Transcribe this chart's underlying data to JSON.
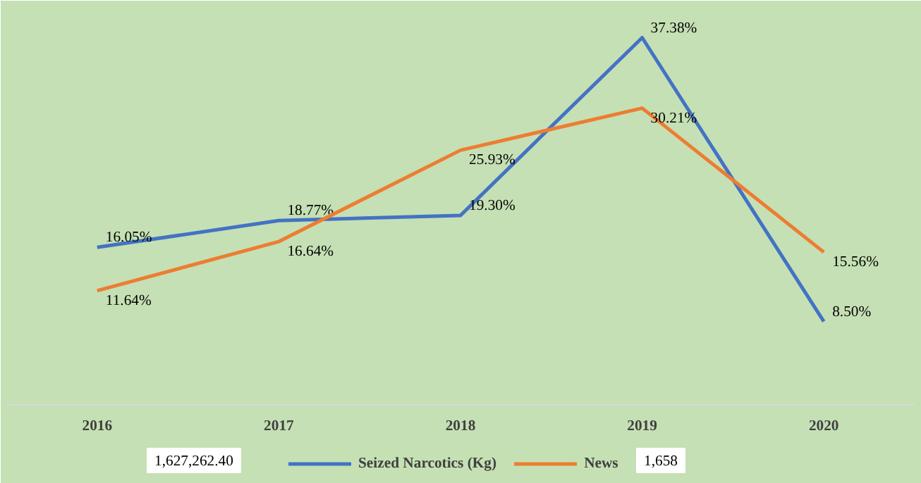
{
  "chart_data": {
    "type": "line",
    "categories": [
      "2016",
      "2017",
      "2018",
      "2019",
      "2020"
    ],
    "series": [
      {
        "name": "Seized Narcotics (Kg)",
        "color": "#4472c4",
        "values": [
          16.05,
          18.77,
          19.3,
          37.38,
          8.5
        ],
        "value_labels": [
          "16.05%",
          "18.77%",
          "19.30%",
          "37.38%",
          "8.50%"
        ]
      },
      {
        "name": "News",
        "color": "#ed7d31",
        "values": [
          11.64,
          16.64,
          25.93,
          30.21,
          15.56
        ],
        "value_labels": [
          "11.64%",
          "16.64%",
          "25.93%",
          "30.21%",
          "15.56%"
        ]
      }
    ],
    "grid": false,
    "legend": "bottom",
    "marker": "none",
    "line_style": "solid",
    "annotations": [
      "1,627,262.40",
      "1,658"
    ]
  }
}
